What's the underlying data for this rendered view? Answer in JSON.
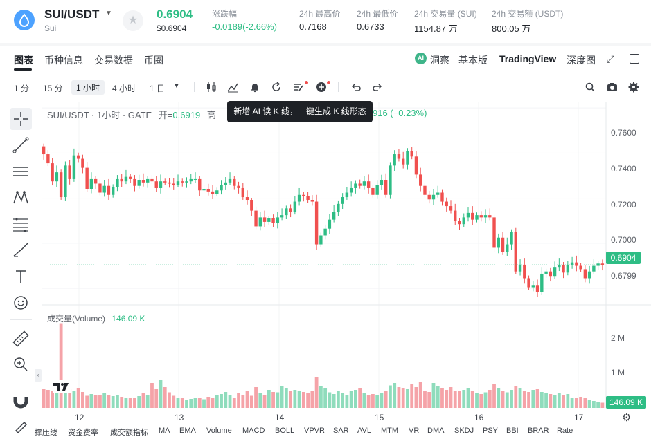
{
  "header": {
    "pair": "SUI/USDT",
    "sub": "Sui",
    "price": "0.6904",
    "price_usd": "$0.6904",
    "stats": [
      {
        "label": "涨跌幅",
        "value": "-0.0189(-2.66%)"
      },
      {
        "label": "24h 最高价",
        "value": "0.7168"
      },
      {
        "label": "24h 最低价",
        "value": "0.6733"
      },
      {
        "label": "24h 交易量 (SUI)",
        "value": "1154.87 万"
      },
      {
        "label": "24h 交易额 (USDT)",
        "value": "800.05 万"
      }
    ]
  },
  "tabs": [
    "图表",
    "币种信息",
    "交易数据",
    "币圈"
  ],
  "right_tabs": {
    "insight": "洞察",
    "basic": "基本版",
    "tv": "TradingView",
    "depth": "深度图",
    "ai": "AI"
  },
  "intervals": [
    "1 分",
    "15 分",
    "1 小时",
    "4 小时",
    "1 日"
  ],
  "selected_interval": "1 小时",
  "legend": {
    "title": "SUI/USDT · 1小时 · GATE",
    "open_label": "开=",
    "open": "0.6919",
    "rest_label": "高",
    "close_frag": "916 (−0.23%)"
  },
  "tooltip": "新增 AI 读 K 线，一键生成 K 线形态",
  "volume_legend": {
    "label": "成交量(Volume)",
    "value": "146.09 K"
  },
  "y_axis": [
    "0.7600",
    "0.7400",
    "0.7200",
    "0.7000",
    "0.6799"
  ],
  "price_tag": "0.6904",
  "vol_axis": [
    "2 M",
    "1 M"
  ],
  "vol_tag": "146.09 K",
  "x_axis": [
    "12",
    "13",
    "14",
    "15",
    "16",
    "17"
  ],
  "indicators": [
    "撑压线",
    "资金费率",
    "成交额指标",
    "MA",
    "EMA",
    "Volume",
    "MACD",
    "BOLL",
    "VPVR",
    "SAR",
    "AVL",
    "MTM",
    "VR",
    "DMA",
    "SKDJ",
    "PSY",
    "BBI",
    "BRAR",
    "Rate"
  ],
  "colors": {
    "up": "#2ebd85",
    "down": "#f0504f",
    "up_vol": "#8fdcbc",
    "down_vol": "#f5a3a8"
  },
  "chart_data": {
    "type": "candlestick",
    "ylim": [
      0.673,
      0.7625
    ],
    "closes": [
      0.7395,
      0.7355,
      0.7275,
      0.7315,
      0.7205,
      0.7345,
      0.7285,
      0.739,
      0.7375,
      0.7335,
      0.724,
      0.7285,
      0.7265,
      0.7225,
      0.7255,
      0.7215,
      0.725,
      0.7285,
      0.7275,
      0.7295,
      0.7285,
      0.7255,
      0.728,
      0.727,
      0.7285,
      0.7275,
      0.7245,
      0.7275,
      0.727,
      0.7265,
      0.726,
      0.7275,
      0.727,
      0.7275,
      0.7285,
      0.7285,
      0.7235,
      0.724,
      0.723,
      0.722,
      0.7235,
      0.726,
      0.727,
      0.7285,
      0.7255,
      0.7245,
      0.7205,
      0.719,
      0.7145,
      0.7075,
      0.7115,
      0.7095,
      0.711,
      0.709,
      0.7115,
      0.7125,
      0.7155,
      0.714,
      0.7185,
      0.7215,
      0.721,
      0.719,
      0.7185,
      0.6995,
      0.7035,
      0.7065,
      0.7105,
      0.714,
      0.7175,
      0.7205,
      0.7225,
      0.7245,
      0.7265,
      0.7255,
      0.7275,
      0.7245,
      0.7215,
      0.726,
      0.728,
      0.7215,
      0.7345,
      0.7395,
      0.7375,
      0.735,
      0.741,
      0.7385,
      0.7305,
      0.7255,
      0.7215,
      0.7195,
      0.7215,
      0.7225,
      0.7185,
      0.7165,
      0.7145,
      0.71,
      0.7085,
      0.7115,
      0.7135,
      0.7105,
      0.7125,
      0.7115,
      0.7125,
      0.7115,
      0.698,
      0.7025,
      0.696,
      0.6995,
      0.705,
      0.6875,
      0.6905,
      0.6845,
      0.6805,
      0.6815,
      0.6785,
      0.6865,
      0.6875,
      0.6855,
      0.6895,
      0.6905,
      0.687,
      0.6905,
      0.6915,
      0.69,
      0.6885,
      0.6845,
      0.6875,
      0.69,
      0.691,
      0.6904
    ],
    "vols": [
      0.55,
      0.52,
      0.48,
      0.5,
      2.45,
      0.6,
      0.55,
      0.5,
      0.58,
      0.46,
      0.35,
      0.4,
      0.38,
      0.36,
      0.42,
      0.38,
      0.34,
      0.36,
      0.32,
      0.3,
      0.28,
      0.3,
      0.34,
      0.42,
      0.38,
      0.72,
      0.55,
      0.8,
      0.6,
      0.45,
      0.35,
      0.28,
      0.3,
      0.22,
      0.26,
      0.3,
      0.28,
      0.25,
      0.32,
      0.28,
      0.36,
      0.4,
      0.46,
      0.38,
      0.3,
      0.42,
      0.38,
      0.5,
      0.35,
      0.6,
      0.42,
      0.38,
      0.52,
      0.46,
      0.45,
      0.62,
      0.58,
      0.48,
      0.52,
      0.5,
      0.46,
      0.42,
      0.5,
      0.9,
      0.64,
      0.58,
      0.45,
      0.4,
      0.5,
      0.42,
      0.38,
      0.48,
      0.52,
      0.58,
      0.44,
      0.36,
      0.4,
      0.38,
      0.42,
      0.48,
      0.65,
      0.72,
      0.6,
      0.58,
      0.55,
      0.7,
      0.6,
      0.75,
      0.5,
      0.46,
      0.72,
      0.62,
      0.58,
      0.52,
      0.6,
      0.5,
      0.48,
      0.52,
      0.58,
      0.5,
      0.42,
      0.4,
      0.45,
      0.52,
      0.68,
      0.58,
      0.5,
      0.45,
      0.52,
      0.62,
      0.58,
      0.5,
      0.46,
      0.52,
      0.55,
      0.46,
      0.44,
      0.4,
      0.36,
      0.42,
      0.38,
      0.4,
      0.3,
      0.28,
      0.32,
      0.28,
      0.22,
      0.2,
      0.16,
      0.15
    ]
  }
}
